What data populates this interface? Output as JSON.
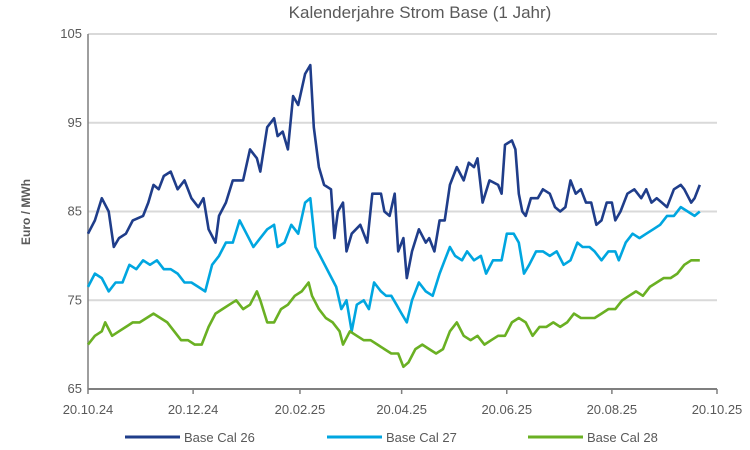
{
  "chart_data": {
    "type": "line",
    "title": "Kalenderjahre Strom Base (1 Jahr)",
    "xlabel": "",
    "ylabel": "Euro / MWh",
    "ylim": [
      65,
      105
    ],
    "yticks": [
      65,
      75,
      85,
      95,
      105
    ],
    "xlim_days": [
      0,
      365
    ],
    "xticks": [
      {
        "label": "20.10.24",
        "day": 0
      },
      {
        "label": "20.12.24",
        "day": 61
      },
      {
        "label": "20.02.25",
        "day": 123
      },
      {
        "label": "20.04.25",
        "day": 182
      },
      {
        "label": "20.06.25",
        "day": 243
      },
      {
        "label": "20.08.25",
        "day": 304
      },
      {
        "label": "20.10.25",
        "day": 365
      }
    ],
    "grid": "horizontal",
    "legend_position": "bottom",
    "series": [
      {
        "name": "Base Cal 26",
        "color": "#1f3d8a",
        "points": [
          [
            0,
            82.5
          ],
          [
            4,
            84
          ],
          [
            8,
            86.5
          ],
          [
            12,
            85
          ],
          [
            15,
            81
          ],
          [
            18,
            82
          ],
          [
            22,
            82.5
          ],
          [
            26,
            84
          ],
          [
            32,
            84.5
          ],
          [
            35,
            86
          ],
          [
            38,
            88
          ],
          [
            41,
            87.5
          ],
          [
            44,
            89
          ],
          [
            48,
            89.5
          ],
          [
            52,
            87.5
          ],
          [
            56,
            88.5
          ],
          [
            60,
            86.5
          ],
          [
            64,
            85.5
          ],
          [
            67,
            86.5
          ],
          [
            70,
            83
          ],
          [
            74,
            81.5
          ],
          [
            76,
            84.5
          ],
          [
            80,
            86
          ],
          [
            84,
            88.5
          ],
          [
            90,
            88.5
          ],
          [
            94,
            92
          ],
          [
            98,
            91
          ],
          [
            100,
            89.5
          ],
          [
            104,
            94.5
          ],
          [
            108,
            95.5
          ],
          [
            110,
            93.5
          ],
          [
            113,
            94
          ],
          [
            116,
            92
          ],
          [
            119,
            98
          ],
          [
            122,
            97
          ],
          [
            126,
            100.5
          ],
          [
            129,
            101.5
          ],
          [
            131,
            94.5
          ],
          [
            134,
            90
          ],
          [
            137,
            88
          ],
          [
            141,
            87.5
          ],
          [
            143,
            82
          ],
          [
            145,
            85
          ],
          [
            148,
            86
          ],
          [
            150,
            80.5
          ],
          [
            153,
            82.5
          ],
          [
            158,
            83.5
          ],
          [
            162,
            81.5
          ],
          [
            165,
            87
          ],
          [
            170,
            87
          ],
          [
            172,
            85
          ],
          [
            175,
            84.5
          ],
          [
            178,
            87
          ],
          [
            180,
            80.5
          ],
          [
            183,
            82
          ],
          [
            185,
            77.5
          ],
          [
            188,
            80.5
          ],
          [
            192,
            83
          ],
          [
            196,
            81.5
          ],
          [
            198,
            82
          ],
          [
            201,
            80.5
          ],
          [
            204,
            84
          ],
          [
            207,
            84
          ],
          [
            210,
            88
          ],
          [
            214,
            90
          ],
          [
            218,
            88.5
          ],
          [
            221,
            90.5
          ],
          [
            224,
            90
          ],
          [
            226,
            91
          ],
          [
            229,
            86
          ],
          [
            233,
            88.5
          ],
          [
            238,
            88
          ],
          [
            240,
            87
          ],
          [
            242,
            92.5
          ],
          [
            246,
            93
          ],
          [
            248,
            92
          ],
          [
            250,
            87
          ],
          [
            252,
            85
          ],
          [
            254,
            84.5
          ],
          [
            257,
            86.5
          ],
          [
            261,
            86.5
          ],
          [
            264,
            87.5
          ],
          [
            268,
            87
          ],
          [
            271,
            85.5
          ],
          [
            274,
            85
          ],
          [
            277,
            85.5
          ],
          [
            280,
            88.5
          ],
          [
            283,
            87
          ],
          [
            286,
            87.5
          ],
          [
            289,
            86
          ],
          [
            292,
            86
          ],
          [
            295,
            83.5
          ],
          [
            298,
            84
          ],
          [
            301,
            86
          ],
          [
            304,
            86
          ],
          [
            306,
            84
          ],
          [
            309,
            85
          ],
          [
            313,
            87
          ],
          [
            317,
            87.5
          ],
          [
            321,
            86.5
          ],
          [
            324,
            87.5
          ],
          [
            327,
            86
          ],
          [
            330,
            86.5
          ],
          [
            333,
            86
          ],
          [
            336,
            85.5
          ],
          [
            340,
            87.5
          ],
          [
            344,
            88
          ],
          [
            346,
            87.5
          ],
          [
            350,
            86
          ],
          [
            352,
            86.5
          ],
          [
            355,
            88
          ]
        ]
      },
      {
        "name": "Base Cal 27",
        "color": "#00a6e0",
        "points": [
          [
            0,
            76.5
          ],
          [
            4,
            78
          ],
          [
            8,
            77.5
          ],
          [
            12,
            76
          ],
          [
            16,
            77
          ],
          [
            20,
            77
          ],
          [
            24,
            79
          ],
          [
            28,
            78.5
          ],
          [
            32,
            79.5
          ],
          [
            36,
            79
          ],
          [
            40,
            79.5
          ],
          [
            44,
            78.5
          ],
          [
            48,
            78.5
          ],
          [
            52,
            78
          ],
          [
            56,
            77
          ],
          [
            60,
            77
          ],
          [
            64,
            76.5
          ],
          [
            68,
            76
          ],
          [
            72,
            79
          ],
          [
            76,
            80
          ],
          [
            80,
            81.5
          ],
          [
            84,
            81.5
          ],
          [
            88,
            84
          ],
          [
            92,
            82.5
          ],
          [
            96,
            81
          ],
          [
            100,
            82
          ],
          [
            104,
            83
          ],
          [
            108,
            83.5
          ],
          [
            110,
            81
          ],
          [
            114,
            81.5
          ],
          [
            118,
            83.5
          ],
          [
            122,
            82.5
          ],
          [
            126,
            86
          ],
          [
            129,
            86.5
          ],
          [
            132,
            81
          ],
          [
            136,
            79.5
          ],
          [
            140,
            78
          ],
          [
            144,
            76.5
          ],
          [
            147,
            74
          ],
          [
            150,
            75
          ],
          [
            153,
            71.5
          ],
          [
            156,
            74.5
          ],
          [
            160,
            75
          ],
          [
            163,
            74
          ],
          [
            166,
            77
          ],
          [
            170,
            76
          ],
          [
            173,
            75.5
          ],
          [
            176,
            75.5
          ],
          [
            179,
            74.5
          ],
          [
            182,
            73.5
          ],
          [
            185,
            72.5
          ],
          [
            188,
            75
          ],
          [
            192,
            77
          ],
          [
            196,
            76
          ],
          [
            200,
            75.5
          ],
          [
            204,
            78
          ],
          [
            207,
            79.5
          ],
          [
            210,
            81
          ],
          [
            213,
            80
          ],
          [
            217,
            79.5
          ],
          [
            220,
            80.5
          ],
          [
            224,
            79.5
          ],
          [
            228,
            80
          ],
          [
            231,
            78
          ],
          [
            235,
            79.5
          ],
          [
            240,
            79.5
          ],
          [
            243,
            82.5
          ],
          [
            247,
            82.5
          ],
          [
            250,
            81.5
          ],
          [
            253,
            78
          ],
          [
            256,
            79
          ],
          [
            260,
            80.5
          ],
          [
            264,
            80.5
          ],
          [
            268,
            80
          ],
          [
            272,
            80.5
          ],
          [
            276,
            79
          ],
          [
            280,
            79.5
          ],
          [
            284,
            81.5
          ],
          [
            287,
            81
          ],
          [
            291,
            81
          ],
          [
            294,
            80.5
          ],
          [
            298,
            79.5
          ],
          [
            302,
            80.5
          ],
          [
            306,
            80.5
          ],
          [
            308,
            79.5
          ],
          [
            312,
            81.5
          ],
          [
            316,
            82.5
          ],
          [
            320,
            82
          ],
          [
            324,
            82.5
          ],
          [
            328,
            83
          ],
          [
            332,
            83.5
          ],
          [
            336,
            84.5
          ],
          [
            340,
            84.5
          ],
          [
            344,
            85.5
          ],
          [
            348,
            85
          ],
          [
            352,
            84.5
          ],
          [
            355,
            85
          ]
        ]
      },
      {
        "name": "Base Cal 28",
        "color": "#6ab023",
        "points": [
          [
            0,
            70
          ],
          [
            4,
            71
          ],
          [
            8,
            71.5
          ],
          [
            10,
            72.5
          ],
          [
            14,
            71
          ],
          [
            18,
            71.5
          ],
          [
            22,
            72
          ],
          [
            26,
            72.5
          ],
          [
            30,
            72.5
          ],
          [
            34,
            73
          ],
          [
            38,
            73.5
          ],
          [
            42,
            73
          ],
          [
            46,
            72.5
          ],
          [
            50,
            71.5
          ],
          [
            54,
            70.5
          ],
          [
            58,
            70.5
          ],
          [
            62,
            70
          ],
          [
            66,
            70
          ],
          [
            70,
            72
          ],
          [
            74,
            73.5
          ],
          [
            78,
            74
          ],
          [
            82,
            74.5
          ],
          [
            86,
            75
          ],
          [
            90,
            74
          ],
          [
            94,
            74.5
          ],
          [
            98,
            76
          ],
          [
            100,
            75
          ],
          [
            104,
            72.5
          ],
          [
            108,
            72.5
          ],
          [
            112,
            74
          ],
          [
            116,
            74.5
          ],
          [
            120,
            75.5
          ],
          [
            124,
            76
          ],
          [
            128,
            77
          ],
          [
            130,
            75.5
          ],
          [
            134,
            74
          ],
          [
            138,
            73
          ],
          [
            142,
            72.5
          ],
          [
            146,
            71.5
          ],
          [
            148,
            70
          ],
          [
            152,
            71.5
          ],
          [
            156,
            71
          ],
          [
            160,
            70.5
          ],
          [
            164,
            70.5
          ],
          [
            168,
            70
          ],
          [
            172,
            69.5
          ],
          [
            176,
            69
          ],
          [
            180,
            69
          ],
          [
            183,
            67.5
          ],
          [
            186,
            68
          ],
          [
            190,
            69.5
          ],
          [
            194,
            70
          ],
          [
            198,
            69.5
          ],
          [
            202,
            69
          ],
          [
            206,
            69.5
          ],
          [
            210,
            71.5
          ],
          [
            214,
            72.5
          ],
          [
            218,
            71
          ],
          [
            222,
            70.5
          ],
          [
            226,
            71
          ],
          [
            230,
            70
          ],
          [
            234,
            70.5
          ],
          [
            238,
            71
          ],
          [
            242,
            71
          ],
          [
            246,
            72.5
          ],
          [
            250,
            73
          ],
          [
            254,
            72.5
          ],
          [
            258,
            71
          ],
          [
            262,
            72
          ],
          [
            266,
            72
          ],
          [
            270,
            72.5
          ],
          [
            274,
            72
          ],
          [
            278,
            72.5
          ],
          [
            282,
            73.5
          ],
          [
            286,
            73
          ],
          [
            290,
            73
          ],
          [
            294,
            73
          ],
          [
            298,
            73.5
          ],
          [
            302,
            74
          ],
          [
            306,
            74
          ],
          [
            310,
            75
          ],
          [
            314,
            75.5
          ],
          [
            318,
            76
          ],
          [
            322,
            75.5
          ],
          [
            326,
            76.5
          ],
          [
            330,
            77
          ],
          [
            334,
            77.5
          ],
          [
            338,
            77.5
          ],
          [
            342,
            78
          ],
          [
            346,
            79
          ],
          [
            350,
            79.5
          ],
          [
            354,
            79.5
          ],
          [
            355,
            79.5
          ]
        ]
      }
    ]
  }
}
